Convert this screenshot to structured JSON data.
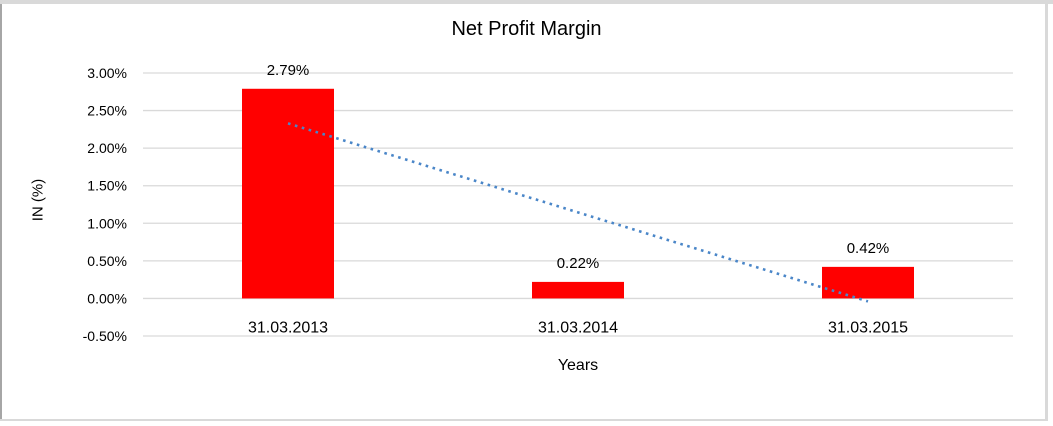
{
  "window": {
    "background": "#ffffff",
    "frame_top_color": "#d9d9d9",
    "frame_left_color": "#a6a6a6",
    "frame_side_color": "#d9d9d9"
  },
  "chart_data": {
    "type": "bar",
    "title": "Net Profit Margin",
    "xlabel": "Years",
    "ylabel": "IN (%)",
    "categories": [
      "31.03.2013",
      "31.03.2014",
      "31.03.2015"
    ],
    "values": [
      2.79,
      0.22,
      0.42
    ],
    "data_labels": [
      "2.79%",
      "0.22%",
      "0.42%"
    ],
    "ylim": [
      -0.5,
      3.0
    ],
    "ytick_step": 0.5,
    "ytick_labels": [
      "3.00%",
      "2.50%",
      "2.00%",
      "1.50%",
      "1.00%",
      "0.50%",
      "0.00%",
      "-0.50%"
    ],
    "grid": true,
    "legend": "none",
    "bar_color": "#ff0000",
    "gridline_color": "#d9d9d9",
    "text_color": "#000000",
    "trendline": {
      "type": "linear",
      "style": "dotted",
      "color": "#4a86c8",
      "start_value": 2.33,
      "end_value": -0.04
    }
  }
}
